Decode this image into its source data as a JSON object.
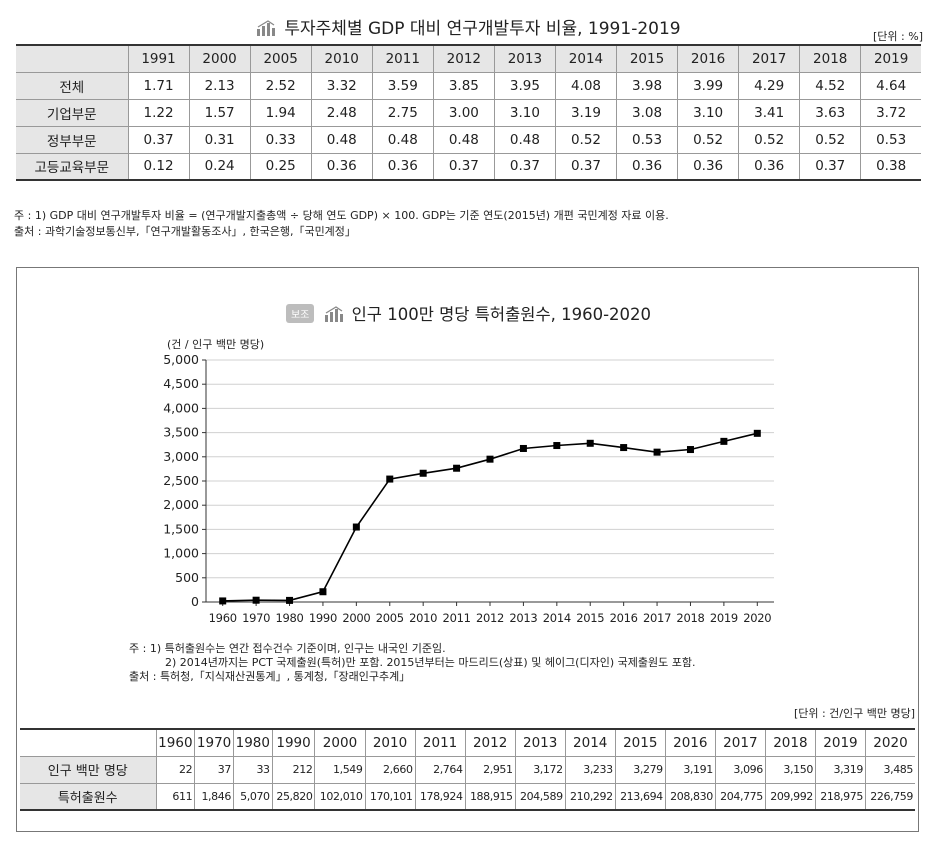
{
  "table1": {
    "title": "투자주체별 GDP 대비 연구개발투자 비율, 1991-2019",
    "unit": "[단위 : %]",
    "years": [
      "1991",
      "2000",
      "2005",
      "2010",
      "2011",
      "2012",
      "2013",
      "2014",
      "2015",
      "2016",
      "2017",
      "2018",
      "2019"
    ],
    "rows": [
      {
        "label": "전체",
        "values": [
          "1.71",
          "2.13",
          "2.52",
          "3.32",
          "3.59",
          "3.85",
          "3.95",
          "4.08",
          "3.98",
          "3.99",
          "4.29",
          "4.52",
          "4.64"
        ]
      },
      {
        "label": "기업부문",
        "values": [
          "1.22",
          "1.57",
          "1.94",
          "2.48",
          "2.75",
          "3.00",
          "3.10",
          "3.19",
          "3.08",
          "3.10",
          "3.41",
          "3.63",
          "3.72"
        ]
      },
      {
        "label": "정부부문",
        "values": [
          "0.37",
          "0.31",
          "0.33",
          "0.48",
          "0.48",
          "0.48",
          "0.48",
          "0.52",
          "0.53",
          "0.52",
          "0.52",
          "0.52",
          "0.53"
        ]
      },
      {
        "label": "고등교육부문",
        "values": [
          "0.12",
          "0.24",
          "0.25",
          "0.36",
          "0.36",
          "0.37",
          "0.37",
          "0.37",
          "0.36",
          "0.36",
          "0.36",
          "0.37",
          "0.38"
        ]
      }
    ],
    "note": "주 : 1) GDP 대비 연구개발투자 비율 = (연구개발지출총액 ÷ 당해 연도 GDP) × 100. GDP는 기준 연도(2015년) 개편 국민계정 자료 이용.",
    "source": "출처 : 과학기술정보통신부,「연구개발활동조사」, 한국은행,「국민계정」"
  },
  "box": {
    "badge": "보조",
    "title": "인구 100만 명당 특허출원수, 1960-2020",
    "note_line1": "주 : 1) 특허출원수는 연간 접수건수 기준이며, 인구는 내국인 기준임.",
    "note_line2": "2) 2014년까지는 PCT 국제출원(특허)만 포함. 2015년부터는 마드리드(상표) 및 헤이그(디자인) 국제출원도 포함.",
    "source": "출처 : 특허청,「지식재산권통계」, 통계청,「장래인구추계」",
    "unit": "[단위 : 건/인구 백만 명당]",
    "table": {
      "years": [
        "1960",
        "1970",
        "1980",
        "1990",
        "2000",
        "2010",
        "2011",
        "2012",
        "2013",
        "2014",
        "2015",
        "2016",
        "2017",
        "2018",
        "2019",
        "2020"
      ],
      "rows": [
        {
          "label": "인구 백만 명당",
          "values": [
            "22",
            "37",
            "33",
            "212",
            "1,549",
            "2,660",
            "2,764",
            "2,951",
            "3,172",
            "3,233",
            "3,279",
            "3,191",
            "3,096",
            "3,150",
            "3,319",
            "3,485"
          ]
        },
        {
          "label": "특허출원수",
          "values": [
            "611",
            "1,846",
            "5,070",
            "25,820",
            "102,010",
            "170,101",
            "178,924",
            "188,915",
            "204,589",
            "210,292",
            "213,694",
            "208,830",
            "204,775",
            "209,992",
            "218,975",
            "226,759"
          ]
        }
      ]
    }
  },
  "chart_data": {
    "type": "line",
    "title": "인구 100만 명당 특허출원수, 1960-2020",
    "ylabel": "(건 / 인구 백만 명당)",
    "xlabel": "",
    "x": [
      "1960",
      "1970",
      "1980",
      "1990",
      "2000",
      "2005",
      "2010",
      "2011",
      "2012",
      "2013",
      "2014",
      "2015",
      "2016",
      "2017",
      "2018",
      "2019",
      "2020"
    ],
    "series": [
      {
        "values": [
          22,
          37,
          33,
          212,
          1549,
          2540,
          2660,
          2764,
          2951,
          3172,
          3233,
          3279,
          3191,
          3096,
          3150,
          3319,
          3485
        ]
      }
    ],
    "ylim": [
      0,
      5000
    ],
    "yticks": [
      0,
      500,
      1000,
      1500,
      2000,
      2500,
      3000,
      3500,
      4000,
      4500,
      5000
    ],
    "ytick_labels": [
      "0",
      "500",
      "1,000",
      "1,500",
      "2,000",
      "2,500",
      "3,000",
      "3,500",
      "4,000",
      "4,500",
      "5,000"
    ],
    "grid": true,
    "marker": "square",
    "color": "#000000"
  }
}
